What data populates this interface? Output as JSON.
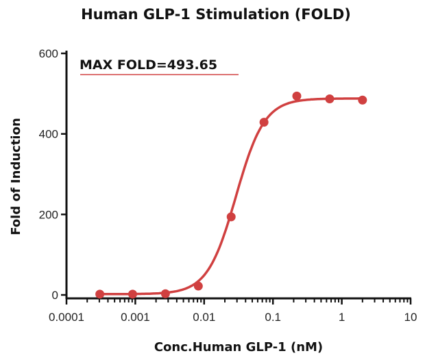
{
  "chart_data": {
    "type": "scatter",
    "title": "Human GLP-1 Stimulation (FOLD)",
    "xlabel": "Conc.Human GLP-1 (nM)",
    "ylabel": "Fold of Induction",
    "xscale": "log",
    "xlim": [
      0.0001,
      10
    ],
    "ylim": [
      0,
      600
    ],
    "x_ticks": [
      "0.0001",
      "0.001",
      "0.01",
      "0.1",
      "1",
      "10"
    ],
    "y_ticks": [
      "0",
      "200",
      "400",
      "600"
    ],
    "grid": false,
    "annotation": "MAX FOLD=493.65",
    "color": "#d04040",
    "series": [
      {
        "x": [
          0.000305,
          0.000914,
          0.00274,
          0.00823,
          0.0247,
          0.0741,
          0.222,
          0.667,
          2
        ],
        "y": [
          2,
          2,
          3,
          22,
          194,
          429,
          494,
          487,
          484
        ]
      }
    ],
    "fit": {
      "model": "4PL",
      "bottom": 2,
      "top": 488,
      "ec50": 0.029,
      "hill": 2.1
    }
  }
}
